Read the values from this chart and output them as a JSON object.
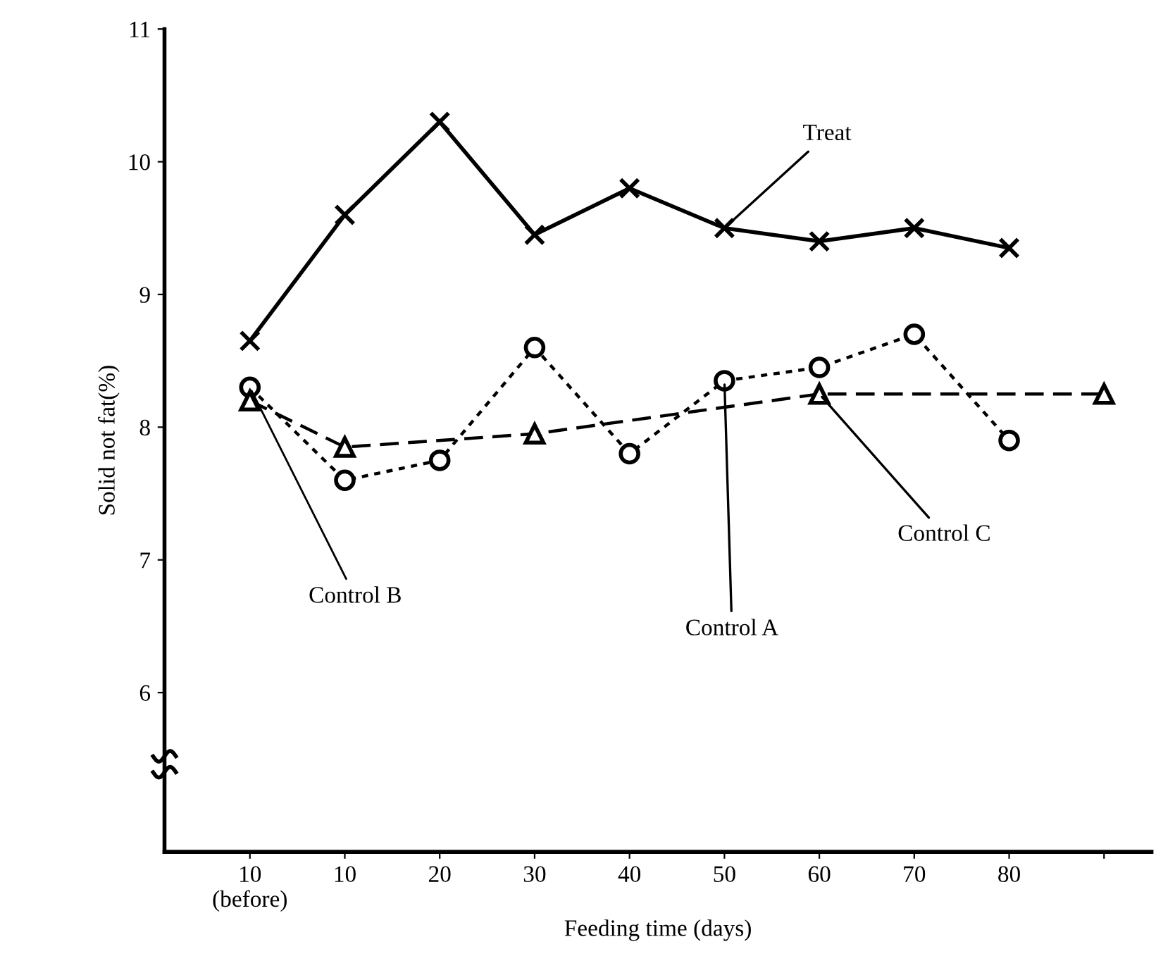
{
  "chart_data": {
    "type": "line",
    "xlabel": "Feeding time (days)",
    "ylabel": "Solid not fat(%)",
    "categories": [
      "10\n(before)",
      "10",
      "20",
      "30",
      "40",
      "50",
      "60",
      "70",
      "80",
      null
    ],
    "series": [
      {
        "name": "Treat",
        "color": "#000000",
        "marker": "cross",
        "line_style": "solid",
        "values": [
          8.65,
          9.6,
          10.3,
          9.45,
          9.8,
          9.5,
          9.4,
          9.5,
          9.35,
          null
        ]
      },
      {
        "name": "Control A",
        "color": "#000000",
        "marker": "circle",
        "line_style": "dotted",
        "values": [
          8.3,
          7.6,
          7.75,
          8.6,
          7.8,
          8.35,
          8.45,
          8.7,
          7.9,
          null
        ]
      },
      {
        "name": "Control C",
        "color": "#000000",
        "marker": "triangle",
        "line_style": "dashed",
        "values": [
          8.2,
          7.85,
          null,
          7.95,
          null,
          null,
          8.25,
          null,
          null,
          8.25
        ]
      }
    ],
    "annotations": [
      {
        "text": "Control B",
        "x": "10\n(before)",
        "y": 8.3
      }
    ],
    "ylim": [
      4.8,
      11
    ],
    "yticks": [
      6,
      7,
      8,
      9,
      10,
      11
    ],
    "grid": false,
    "legend": false
  }
}
